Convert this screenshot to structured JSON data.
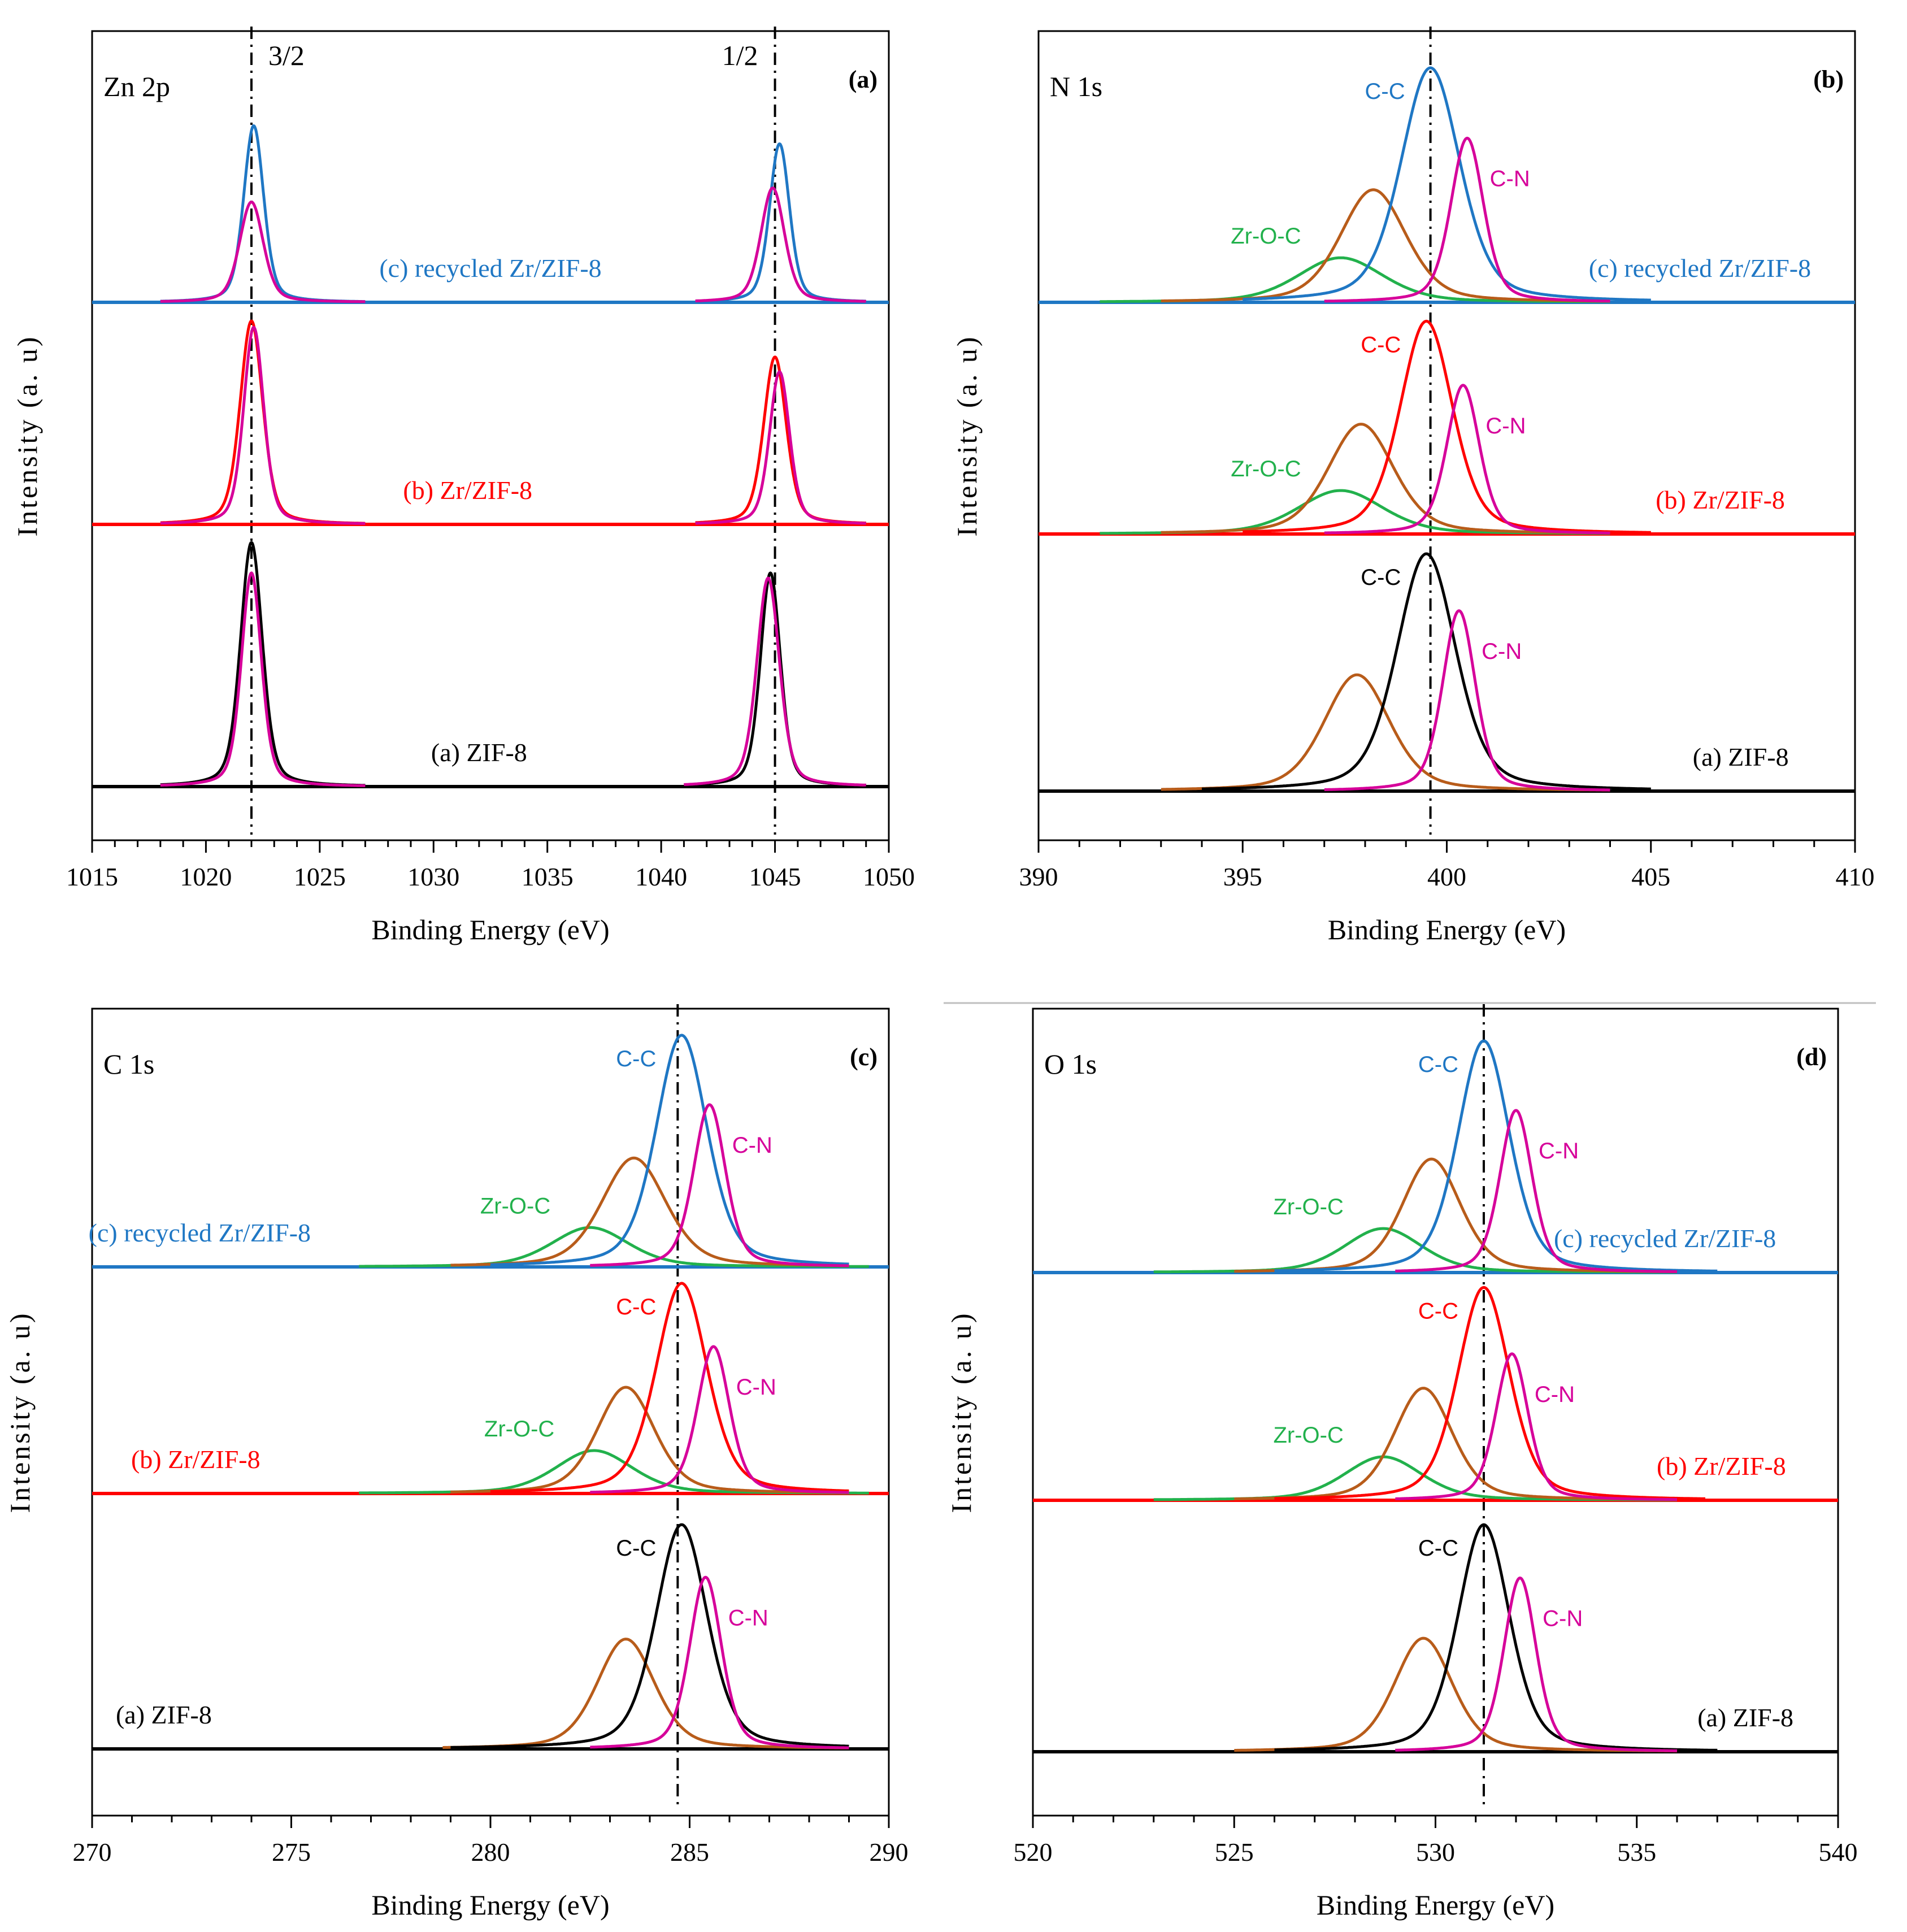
{
  "colors": {
    "blue": "#1f77c4",
    "red": "#ff0000",
    "black": "#000000",
    "magenta": "#d6009a",
    "brown": "#b85c1a",
    "green": "#22b14c"
  },
  "chart_data": [
    {
      "type": "line",
      "panel_letter": "(a)",
      "core_level": "Zn 2p",
      "xlabel": "Binding Energy (eV)",
      "ylabel": "Intensity (a. u)",
      "xlim": [
        1015,
        1050
      ],
      "xticks": [
        1015,
        1020,
        1025,
        1030,
        1035,
        1040,
        1045,
        1050
      ],
      "ref_lines": [
        {
          "x": 1022,
          "label": "3/2"
        },
        {
          "x": 1045,
          "label": "1/2"
        }
      ],
      "samples": [
        {
          "label": "(c) recycled Zr/ZIF-8",
          "color": "blue",
          "label_x": 1032.5,
          "peaks": [
            {
              "name": "",
              "center": 1022.1,
              "height": 0.88,
              "width": 0.55,
              "color": "blue",
              "range": [
                1018,
                1027
              ]
            },
            {
              "name": "",
              "center": 1022.0,
              "height": 0.5,
              "width": 0.65,
              "color": "magenta",
              "range": [
                1018,
                1027
              ]
            },
            {
              "name": "",
              "center": 1045.2,
              "height": 0.79,
              "width": 0.55,
              "color": "blue",
              "range": [
                1041.5,
                1049
              ]
            },
            {
              "name": "",
              "center": 1044.9,
              "height": 0.57,
              "width": 0.65,
              "color": "magenta",
              "range": [
                1041.5,
                1049
              ]
            }
          ]
        },
        {
          "label": "(b) Zr/ZIF-8",
          "color": "red",
          "label_x": 1031.5,
          "peaks": [
            {
              "name": "",
              "center": 1022.0,
              "height": 0.96,
              "width": 0.62,
              "color": "red",
              "range": [
                1018,
                1027
              ]
            },
            {
              "name": "",
              "center": 1022.1,
              "height": 0.93,
              "width": 0.55,
              "color": "magenta",
              "range": [
                1018,
                1027
              ]
            },
            {
              "name": "",
              "center": 1045.0,
              "height": 0.79,
              "width": 0.62,
              "color": "red",
              "range": [
                1041.5,
                1049
              ]
            },
            {
              "name": "",
              "center": 1045.2,
              "height": 0.72,
              "width": 0.55,
              "color": "magenta",
              "range": [
                1041.5,
                1049
              ]
            }
          ]
        },
        {
          "label": "(a) ZIF-8",
          "color": "black",
          "label_x": 1032.0,
          "peaks": [
            {
              "name": "",
              "center": 1022.0,
              "height": 0.96,
              "width": 0.6,
              "color": "black",
              "range": [
                1018,
                1027
              ]
            },
            {
              "name": "",
              "center": 1022.0,
              "height": 0.84,
              "width": 0.55,
              "color": "magenta",
              "range": [
                1018,
                1027
              ]
            },
            {
              "name": "",
              "center": 1044.8,
              "height": 0.84,
              "width": 0.55,
              "color": "black",
              "range": [
                1041,
                1049
              ]
            },
            {
              "name": "",
              "center": 1044.7,
              "height": 0.82,
              "width": 0.62,
              "color": "magenta",
              "range": [
                1041,
                1049
              ]
            }
          ]
        }
      ]
    },
    {
      "type": "line",
      "panel_letter": "(b)",
      "core_level": "N 1s",
      "xlabel": "Binding Energy (eV)",
      "ylabel": "Intensity (a. u)",
      "xlim": [
        390,
        410
      ],
      "xticks": [
        390,
        395,
        400,
        405,
        410
      ],
      "ref_lines": [
        {
          "x": 399.6,
          "label": ""
        }
      ],
      "samples": [
        {
          "label": "(c) recycled Zr/ZIF-8",
          "color": "blue",
          "label_x": 406.2,
          "peaks": [
            {
              "name": "Zr-O-C",
              "center": 397.4,
              "height": 0.19,
              "width": 1.3,
              "color": "green",
              "range": [
                391.5,
                404
              ]
            },
            {
              "name": "",
              "center": 398.2,
              "height": 0.48,
              "width": 1.0,
              "color": "brown",
              "range": [
                393,
                404
              ]
            },
            {
              "name": "C-C",
              "center": 399.6,
              "height": 1.0,
              "width": 0.9,
              "color": "blue",
              "range": [
                395,
                405
              ]
            },
            {
              "name": "C-N",
              "center": 400.5,
              "height": 0.7,
              "width": 0.5,
              "color": "magenta",
              "range": [
                397,
                404
              ]
            }
          ]
        },
        {
          "label": "(b) Zr/ZIF-8",
          "color": "red",
          "label_x": 406.7,
          "peaks": [
            {
              "name": "Zr-O-C",
              "center": 397.4,
              "height": 0.19,
              "width": 1.3,
              "color": "green",
              "range": [
                391.5,
                404
              ]
            },
            {
              "name": "",
              "center": 397.9,
              "height": 0.48,
              "width": 1.0,
              "color": "brown",
              "range": [
                393,
                404
              ]
            },
            {
              "name": "C-C",
              "center": 399.5,
              "height": 0.93,
              "width": 0.8,
              "color": "red",
              "range": [
                395,
                405
              ]
            },
            {
              "name": "C-N",
              "center": 400.4,
              "height": 0.65,
              "width": 0.5,
              "color": "magenta",
              "range": [
                397,
                404
              ]
            }
          ]
        },
        {
          "label": "(a) ZIF-8",
          "color": "black",
          "label_x": 407.2,
          "peaks": [
            {
              "name": "",
              "center": 397.8,
              "height": 0.49,
              "width": 1.0,
              "color": "brown",
              "range": [
                393,
                404
              ]
            },
            {
              "name": "C-C",
              "center": 399.5,
              "height": 1.0,
              "width": 0.9,
              "color": "black",
              "range": [
                394,
                405
              ]
            },
            {
              "name": "C-N",
              "center": 400.3,
              "height": 0.76,
              "width": 0.5,
              "color": "magenta",
              "range": [
                397,
                404
              ]
            }
          ]
        }
      ]
    },
    {
      "type": "line",
      "panel_letter": "(c)",
      "core_level": "C 1s",
      "xlabel": "Binding Energy (eV)",
      "ylabel": "Intensity (a. u)",
      "xlim": [
        270,
        290
      ],
      "xticks": [
        270,
        275,
        280,
        285,
        290
      ],
      "ref_lines": [
        {
          "x": 284.7,
          "label": ""
        }
      ],
      "samples": [
        {
          "label": "(c) recycled Zr/ZIF-8",
          "color": "blue",
          "label_x": 272.7,
          "peaks": [
            {
              "name": "Zr-O-C",
              "center": 282.5,
              "height": 0.17,
              "width": 1.2,
              "color": "green",
              "range": [
                276.7,
                289.5
              ]
            },
            {
              "name": "",
              "center": 283.6,
              "height": 0.47,
              "width": 1.0,
              "color": "brown",
              "range": [
                279,
                289
              ]
            },
            {
              "name": "C-C",
              "center": 284.8,
              "height": 1.0,
              "width": 0.8,
              "color": "blue",
              "range": [
                280,
                289
              ]
            },
            {
              "name": "C-N",
              "center": 285.5,
              "height": 0.7,
              "width": 0.5,
              "color": "magenta",
              "range": [
                282.5,
                289
              ]
            }
          ]
        },
        {
          "label": "(b) Zr/ZIF-8",
          "color": "red",
          "label_x": 272.6,
          "peaks": [
            {
              "name": "Zr-O-C",
              "center": 282.6,
              "height": 0.19,
              "width": 1.2,
              "color": "green",
              "range": [
                276.7,
                289.5
              ]
            },
            {
              "name": "",
              "center": 283.4,
              "height": 0.47,
              "width": 0.9,
              "color": "brown",
              "range": [
                279,
                289
              ]
            },
            {
              "name": "C-C",
              "center": 284.8,
              "height": 0.93,
              "width": 0.8,
              "color": "red",
              "range": [
                280,
                289
              ]
            },
            {
              "name": "C-N",
              "center": 285.6,
              "height": 0.65,
              "width": 0.5,
              "color": "magenta",
              "range": [
                282.5,
                289
              ]
            }
          ]
        },
        {
          "label": "(a) ZIF-8",
          "color": "black",
          "label_x": 271.8,
          "peaks": [
            {
              "name": "",
              "center": 283.4,
              "height": 0.48,
              "width": 0.9,
              "color": "brown",
              "range": [
                278.8,
                289
              ]
            },
            {
              "name": "C-C",
              "center": 284.8,
              "height": 0.98,
              "width": 0.8,
              "color": "black",
              "range": [
                279,
                289
              ]
            },
            {
              "name": "C-N",
              "center": 285.4,
              "height": 0.75,
              "width": 0.5,
              "color": "magenta",
              "range": [
                282.5,
                289
              ]
            }
          ]
        }
      ]
    },
    {
      "type": "line",
      "panel_letter": "(d)",
      "core_level": "O 1s",
      "xlabel": "Binding Energy (eV)",
      "ylabel": "Intensity (a. u)",
      "xlim": [
        520,
        540
      ],
      "xticks": [
        520,
        525,
        530,
        535,
        540
      ],
      "ref_lines": [
        {
          "x": 531.2,
          "label": ""
        }
      ],
      "samples": [
        {
          "label": "(c) recycled Zr/ZIF-8",
          "color": "blue",
          "label_x": 535.7,
          "peaks": [
            {
              "name": "Zr-O-C",
              "center": 528.7,
              "height": 0.19,
              "width": 1.2,
              "color": "green",
              "range": [
                523,
                536
              ]
            },
            {
              "name": "",
              "center": 529.9,
              "height": 0.49,
              "width": 0.9,
              "color": "brown",
              "range": [
                525,
                536
              ]
            },
            {
              "name": "C-C",
              "center": 531.2,
              "height": 1.0,
              "width": 0.8,
              "color": "blue",
              "range": [
                526,
                537
              ]
            },
            {
              "name": "C-N",
              "center": 532.0,
              "height": 0.7,
              "width": 0.5,
              "color": "magenta",
              "range": [
                529,
                536
              ]
            }
          ]
        },
        {
          "label": "(b) Zr/ZIF-8",
          "color": "red",
          "label_x": 537.1,
          "peaks": [
            {
              "name": "Zr-O-C",
              "center": 528.7,
              "height": 0.19,
              "width": 1.2,
              "color": "green",
              "range": [
                523,
                536
              ]
            },
            {
              "name": "",
              "center": 529.7,
              "height": 0.49,
              "width": 0.9,
              "color": "brown",
              "range": [
                525,
                536
              ]
            },
            {
              "name": "C-C",
              "center": 531.2,
              "height": 0.93,
              "width": 0.8,
              "color": "red",
              "range": [
                526,
                536.7
              ]
            },
            {
              "name": "C-N",
              "center": 531.9,
              "height": 0.64,
              "width": 0.5,
              "color": "magenta",
              "range": [
                529,
                536
              ]
            }
          ]
        },
        {
          "label": "(a) ZIF-8",
          "color": "black",
          "label_x": 537.7,
          "peaks": [
            {
              "name": "",
              "center": 529.7,
              "height": 0.49,
              "width": 0.9,
              "color": "brown",
              "range": [
                525,
                536
              ]
            },
            {
              "name": "C-C",
              "center": 531.2,
              "height": 0.98,
              "width": 0.8,
              "color": "black",
              "range": [
                526,
                537
              ]
            },
            {
              "name": "C-N",
              "center": 532.1,
              "height": 0.75,
              "width": 0.5,
              "color": "magenta",
              "range": [
                529,
                536
              ]
            }
          ]
        }
      ]
    }
  ]
}
